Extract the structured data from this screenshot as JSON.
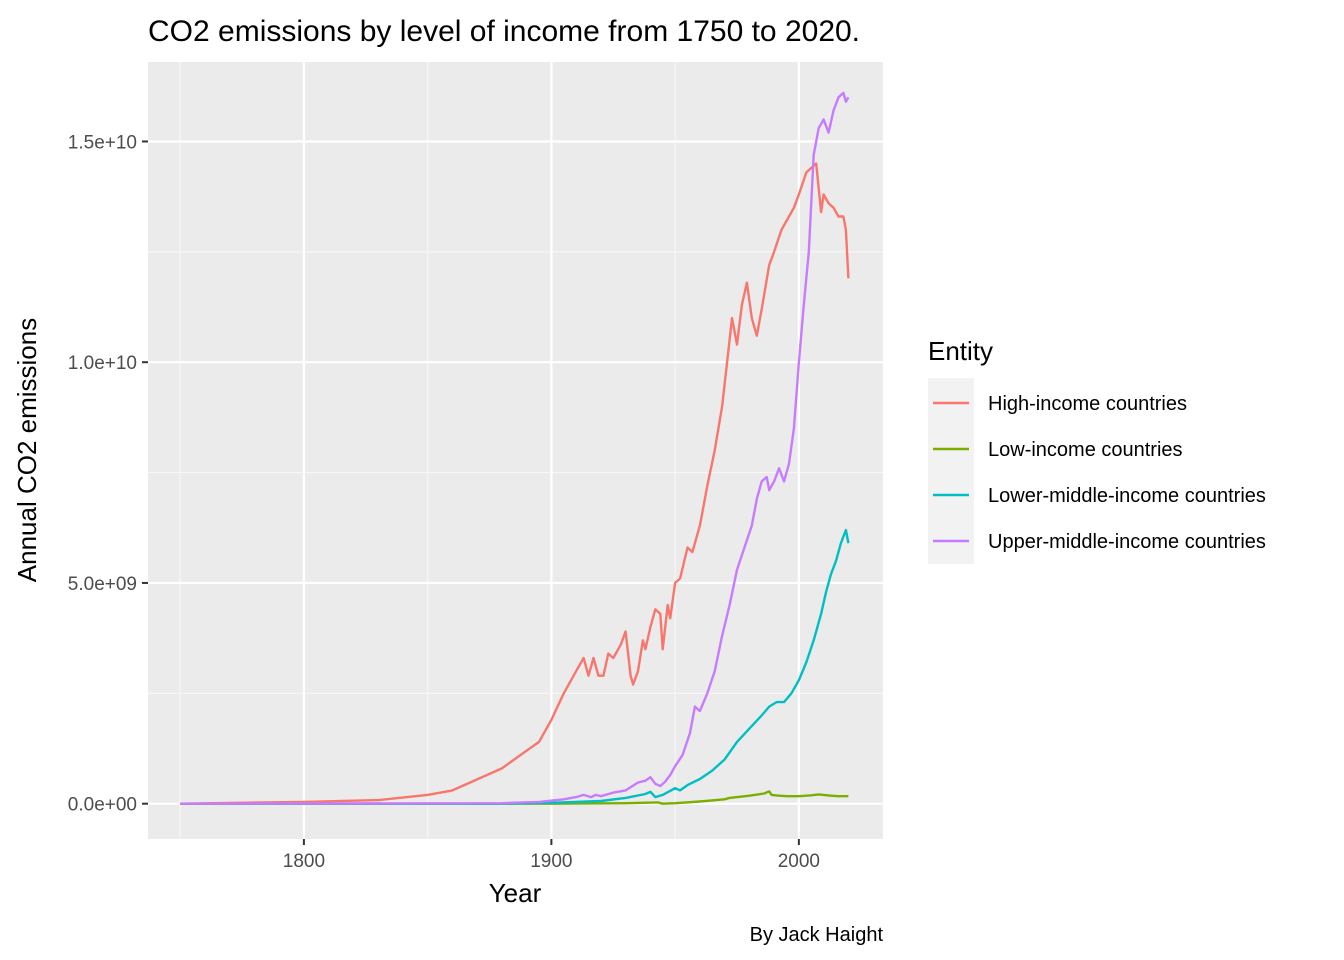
{
  "chart_data": {
    "type": "line",
    "title": "CO2 emissions by level of income from 1750 to 2020.",
    "xlabel": "Year",
    "ylabel": "Annual CO2 emissions",
    "caption": "By Jack Haight",
    "legend_title": "Entity",
    "legend_position": "right",
    "grid": true,
    "xlim": [
      1737,
      2034
    ],
    "ylim": [
      -800000000,
      16800000000
    ],
    "x_ticks": [
      1800,
      1900,
      2000
    ],
    "x_tick_labels": [
      "1800",
      "1900",
      "2000"
    ],
    "y_ticks": [
      0,
      5000000000,
      10000000000,
      15000000000
    ],
    "y_tick_labels": [
      "0.0e+00",
      "5.0e+09",
      "1.0e+10",
      "1.5e+10"
    ],
    "series": [
      {
        "name": "High-income countries",
        "color": "#F8766D",
        "points": [
          [
            1750,
            0
          ],
          [
            1800,
            40000000
          ],
          [
            1830,
            80000000
          ],
          [
            1850,
            200000000
          ],
          [
            1860,
            300000000
          ],
          [
            1870,
            550000000
          ],
          [
            1880,
            800000000
          ],
          [
            1890,
            1200000000
          ],
          [
            1895,
            1400000000
          ],
          [
            1900,
            1900000000
          ],
          [
            1905,
            2500000000
          ],
          [
            1910,
            3000000000
          ],
          [
            1913,
            3300000000
          ],
          [
            1915,
            2900000000
          ],
          [
            1917,
            3300000000
          ],
          [
            1919,
            2900000000
          ],
          [
            1921,
            2900000000
          ],
          [
            1923,
            3400000000
          ],
          [
            1925,
            3300000000
          ],
          [
            1928,
            3600000000
          ],
          [
            1930,
            3900000000
          ],
          [
            1932,
            2900000000
          ],
          [
            1933,
            2700000000
          ],
          [
            1935,
            3000000000
          ],
          [
            1937,
            3700000000
          ],
          [
            1938,
            3500000000
          ],
          [
            1940,
            4000000000
          ],
          [
            1942,
            4400000000
          ],
          [
            1944,
            4300000000
          ],
          [
            1945,
            3500000000
          ],
          [
            1947,
            4500000000
          ],
          [
            1948,
            4200000000
          ],
          [
            1950,
            5000000000
          ],
          [
            1952,
            5100000000
          ],
          [
            1955,
            5800000000
          ],
          [
            1957,
            5700000000
          ],
          [
            1960,
            6300000000
          ],
          [
            1963,
            7200000000
          ],
          [
            1966,
            8000000000
          ],
          [
            1969,
            9000000000
          ],
          [
            1971,
            10000000000
          ],
          [
            1973,
            11000000000
          ],
          [
            1975,
            10400000000
          ],
          [
            1977,
            11300000000
          ],
          [
            1979,
            11800000000
          ],
          [
            1981,
            11000000000
          ],
          [
            1983,
            10600000000
          ],
          [
            1985,
            11200000000
          ],
          [
            1988,
            12200000000
          ],
          [
            1990,
            12500000000
          ],
          [
            1993,
            13000000000
          ],
          [
            1996,
            13300000000
          ],
          [
            1998,
            13500000000
          ],
          [
            2000,
            13800000000
          ],
          [
            2003,
            14300000000
          ],
          [
            2005,
            14400000000
          ],
          [
            2007,
            14500000000
          ],
          [
            2009,
            13400000000
          ],
          [
            2010,
            13800000000
          ],
          [
            2012,
            13600000000
          ],
          [
            2014,
            13500000000
          ],
          [
            2016,
            13300000000
          ],
          [
            2018,
            13300000000
          ],
          [
            2019,
            13000000000
          ],
          [
            2020,
            11900000000
          ]
        ]
      },
      {
        "name": "Low-income countries",
        "color": "#7CAE00",
        "points": [
          [
            1750,
            0
          ],
          [
            1900,
            0
          ],
          [
            1930,
            10000000
          ],
          [
            1943,
            30000000
          ],
          [
            1945,
            0
          ],
          [
            1950,
            10000000
          ],
          [
            1960,
            50000000
          ],
          [
            1970,
            100000000
          ],
          [
            1972,
            130000000
          ],
          [
            1980,
            180000000
          ],
          [
            1986,
            230000000
          ],
          [
            1988,
            280000000
          ],
          [
            1989,
            200000000
          ],
          [
            1992,
            180000000
          ],
          [
            1995,
            170000000
          ],
          [
            2000,
            170000000
          ],
          [
            2005,
            190000000
          ],
          [
            2008,
            210000000
          ],
          [
            2010,
            200000000
          ],
          [
            2013,
            180000000
          ],
          [
            2016,
            170000000
          ],
          [
            2018,
            170000000
          ],
          [
            2020,
            170000000
          ]
        ]
      },
      {
        "name": "Lower-middle-income countries",
        "color": "#00BFC4",
        "points": [
          [
            1750,
            0
          ],
          [
            1880,
            0
          ],
          [
            1900,
            20000000
          ],
          [
            1920,
            60000000
          ],
          [
            1930,
            130000000
          ],
          [
            1938,
            220000000
          ],
          [
            1940,
            270000000
          ],
          [
            1942,
            150000000
          ],
          [
            1945,
            200000000
          ],
          [
            1950,
            350000000
          ],
          [
            1952,
            300000000
          ],
          [
            1955,
            420000000
          ],
          [
            1960,
            560000000
          ],
          [
            1965,
            750000000
          ],
          [
            1970,
            1000000000
          ],
          [
            1975,
            1400000000
          ],
          [
            1980,
            1700000000
          ],
          [
            1985,
            2000000000
          ],
          [
            1988,
            2200000000
          ],
          [
            1991,
            2300000000
          ],
          [
            1994,
            2300000000
          ],
          [
            1997,
            2500000000
          ],
          [
            2000,
            2800000000
          ],
          [
            2003,
            3200000000
          ],
          [
            2006,
            3700000000
          ],
          [
            2009,
            4300000000
          ],
          [
            2011,
            4800000000
          ],
          [
            2013,
            5200000000
          ],
          [
            2015,
            5500000000
          ],
          [
            2017,
            5900000000
          ],
          [
            2019,
            6200000000
          ],
          [
            2020,
            5900000000
          ]
        ]
      },
      {
        "name": "Upper-middle-income countries",
        "color": "#C77CFF",
        "points": [
          [
            1750,
            0
          ],
          [
            1880,
            10000000
          ],
          [
            1895,
            40000000
          ],
          [
            1905,
            100000000
          ],
          [
            1910,
            150000000
          ],
          [
            1913,
            200000000
          ],
          [
            1916,
            150000000
          ],
          [
            1918,
            200000000
          ],
          [
            1920,
            170000000
          ],
          [
            1925,
            250000000
          ],
          [
            1930,
            300000000
          ],
          [
            1935,
            480000000
          ],
          [
            1938,
            520000000
          ],
          [
            1940,
            600000000
          ],
          [
            1942,
            450000000
          ],
          [
            1944,
            400000000
          ],
          [
            1946,
            500000000
          ],
          [
            1948,
            650000000
          ],
          [
            1950,
            850000000
          ],
          [
            1953,
            1100000000
          ],
          [
            1956,
            1600000000
          ],
          [
            1958,
            2200000000
          ],
          [
            1960,
            2100000000
          ],
          [
            1963,
            2500000000
          ],
          [
            1966,
            3000000000
          ],
          [
            1969,
            3800000000
          ],
          [
            1972,
            4500000000
          ],
          [
            1975,
            5300000000
          ],
          [
            1978,
            5800000000
          ],
          [
            1981,
            6300000000
          ],
          [
            1983,
            6900000000
          ],
          [
            1985,
            7300000000
          ],
          [
            1987,
            7400000000
          ],
          [
            1988,
            7100000000
          ],
          [
            1990,
            7300000000
          ],
          [
            1992,
            7600000000
          ],
          [
            1994,
            7300000000
          ],
          [
            1996,
            7700000000
          ],
          [
            1998,
            8500000000
          ],
          [
            2000,
            10000000000
          ],
          [
            2002,
            11300000000
          ],
          [
            2004,
            12500000000
          ],
          [
            2006,
            14700000000
          ],
          [
            2008,
            15300000000
          ],
          [
            2010,
            15500000000
          ],
          [
            2012,
            15200000000
          ],
          [
            2014,
            15700000000
          ],
          [
            2016,
            16000000000
          ],
          [
            2018,
            16100000000
          ],
          [
            2019,
            15900000000
          ],
          [
            2020,
            16000000000
          ]
        ]
      }
    ]
  }
}
